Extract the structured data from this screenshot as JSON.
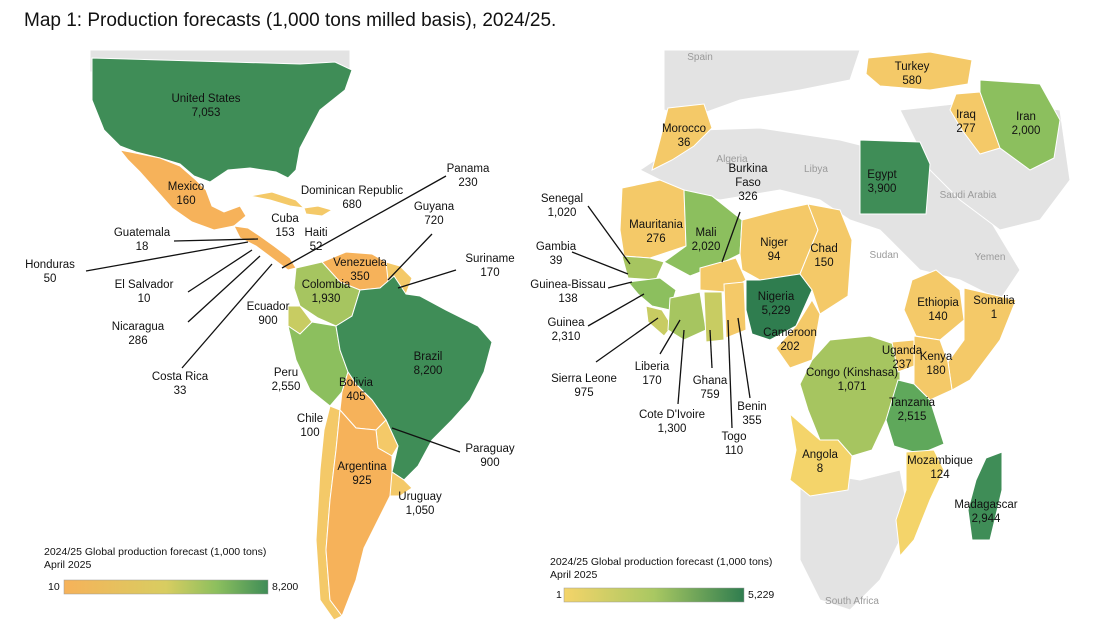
{
  "title": "Map 1: Production forecasts (1,000 tons milled basis), 2024/25.",
  "colors": {
    "low": "#f6c96a",
    "mid": "#8cbf5e",
    "high": "#3f8d57",
    "land": "#e3e3e3"
  },
  "americas_legend": {
    "title": "2024/25 Global production forecast (1,000 tons)",
    "date": "April 2025",
    "min": "10",
    "max": "8,200"
  },
  "africa_legend": {
    "title": "2024/25 Global production forecast (1,000 tons)",
    "date": "April 2025",
    "min": "1",
    "max": "5,229"
  },
  "americas": [
    {
      "name": "United States",
      "value": "7,053"
    },
    {
      "name": "Mexico",
      "value": "160"
    },
    {
      "name": "Dominican Republic",
      "value": "680"
    },
    {
      "name": "Panama",
      "value": "230"
    },
    {
      "name": "Guatemala",
      "value": "18"
    },
    {
      "name": "Cuba",
      "value": "153"
    },
    {
      "name": "Haiti",
      "value": "52"
    },
    {
      "name": "Guyana",
      "value": "720"
    },
    {
      "name": "Honduras",
      "value": "50"
    },
    {
      "name": "Venezuela",
      "value": "350"
    },
    {
      "name": "Suriname",
      "value": "170"
    },
    {
      "name": "El Salvador",
      "value": "10"
    },
    {
      "name": "Colombia",
      "value": "1,930"
    },
    {
      "name": "Ecuador",
      "value": "900"
    },
    {
      "name": "Nicaragua",
      "value": "286"
    },
    {
      "name": "Brazil",
      "value": "8,200"
    },
    {
      "name": "Peru",
      "value": "2,550"
    },
    {
      "name": "Costa Rica",
      "value": "33"
    },
    {
      "name": "Bolivia",
      "value": "405"
    },
    {
      "name": "Chile",
      "value": "100"
    },
    {
      "name": "Paraguay",
      "value": "900"
    },
    {
      "name": "Argentina",
      "value": "925"
    },
    {
      "name": "Uruguay",
      "value": "1,050"
    }
  ],
  "africa": [
    {
      "name": "Turkey",
      "value": "580"
    },
    {
      "name": "Morocco",
      "value": "36"
    },
    {
      "name": "Iraq",
      "value": "277"
    },
    {
      "name": "Iran",
      "value": "2,000"
    },
    {
      "name": "Burkina Faso",
      "value": "326"
    },
    {
      "name": "Egypt",
      "value": "3,900"
    },
    {
      "name": "Senegal",
      "value": "1,020"
    },
    {
      "name": "Mauritania",
      "value": "276"
    },
    {
      "name": "Mali",
      "value": "2,020"
    },
    {
      "name": "Niger",
      "value": "94"
    },
    {
      "name": "Chad",
      "value": "150"
    },
    {
      "name": "Gambia",
      "value": "39"
    },
    {
      "name": "Guinea-Bissau",
      "value": "138"
    },
    {
      "name": "Nigeria",
      "value": "5,229"
    },
    {
      "name": "Ethiopia",
      "value": "140"
    },
    {
      "name": "Somalia",
      "value": "1"
    },
    {
      "name": "Guinea",
      "value": "2,310"
    },
    {
      "name": "Cameroon",
      "value": "202"
    },
    {
      "name": "Uganda",
      "value": "237"
    },
    {
      "name": "Kenya",
      "value": "180"
    },
    {
      "name": "Sierra Leone",
      "value": "975"
    },
    {
      "name": "Liberia",
      "value": "170"
    },
    {
      "name": "Ghana",
      "value": "759"
    },
    {
      "name": "Congo (Kinshasa)",
      "value": "1,071"
    },
    {
      "name": "Cote D'Ivoire",
      "value": "1,300"
    },
    {
      "name": "Benin",
      "value": "355"
    },
    {
      "name": "Togo",
      "value": "110"
    },
    {
      "name": "Tanzania",
      "value": "2,515"
    },
    {
      "name": "Angola",
      "value": "8"
    },
    {
      "name": "Mozambique",
      "value": "124"
    },
    {
      "name": "Madagascar",
      "value": "2,944"
    }
  ],
  "background_labels": {
    "spain": "Spain",
    "algeria": "Algeria",
    "libya": "Libya",
    "sudan": "Sudan",
    "saudi": "Saudi Arabia",
    "yemen": "Yemen",
    "south_africa": "South Africa"
  }
}
